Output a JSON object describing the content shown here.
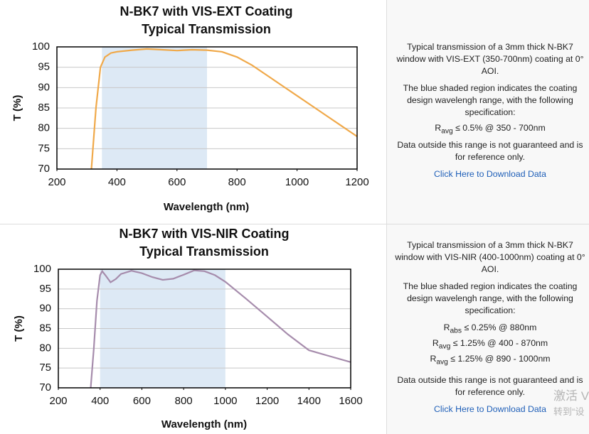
{
  "chart_data": [
    {
      "type": "line",
      "title": [
        "N-BK7 with VIS-EXT Coating",
        "Typical Transmission"
      ],
      "xlabel": "Wavelength (nm)",
      "ylabel": "T (%)",
      "x": [
        315,
        330,
        345,
        360,
        380,
        400,
        450,
        500,
        550,
        600,
        650,
        700,
        750,
        800,
        850,
        900,
        950,
        1000,
        1050,
        1100,
        1150,
        1200
      ],
      "values": [
        70,
        85,
        95,
        97.5,
        98.5,
        98.8,
        99.2,
        99.5,
        99.3,
        99.1,
        99.3,
        99.2,
        98.8,
        97.5,
        95.5,
        93,
        90.5,
        88,
        85.5,
        83,
        80.5,
        78
      ],
      "color": "#f0a94a",
      "shade": [
        350,
        700
      ],
      "shade_color": "#dde9f5",
      "xlim": [
        200,
        1200
      ],
      "ylim": [
        70,
        100
      ],
      "xticks": [
        200,
        400,
        600,
        800,
        1000,
        1200
      ],
      "yticks": [
        70,
        75,
        80,
        85,
        90,
        95,
        100
      ],
      "grid": true
    },
    {
      "type": "line",
      "title": [
        "N-BK7 with VIS-NIR Coating",
        "Typical Transmission"
      ],
      "xlabel": "Wavelength (nm)",
      "ylabel": "T (%)",
      "x": [
        355,
        370,
        385,
        400,
        410,
        425,
        450,
        475,
        500,
        550,
        600,
        650,
        700,
        750,
        800,
        850,
        900,
        950,
        1000,
        1100,
        1200,
        1300,
        1400,
        1500,
        1600
      ],
      "values": [
        70,
        80,
        92,
        98.5,
        99.5,
        98.5,
        96.7,
        97.5,
        98.8,
        99.6,
        99,
        98,
        97.3,
        97.6,
        98.6,
        99.7,
        99.5,
        98.5,
        96.8,
        92.5,
        88,
        83.5,
        79.5,
        78,
        76.5
      ],
      "color": "#a68cac",
      "shade": [
        400,
        1000
      ],
      "shade_color": "#dde9f5",
      "xlim": [
        200,
        1600
      ],
      "ylim": [
        70,
        100
      ],
      "xticks": [
        200,
        400,
        600,
        800,
        1000,
        1200,
        1400,
        1600
      ],
      "yticks": [
        70,
        75,
        80,
        85,
        90,
        95,
        100
      ],
      "grid": true
    }
  ],
  "panels": [
    {
      "intro": "Typical transmission of a 3mm thick N-BK7 window with VIS-EXT (350-700nm) coating at 0° AOI.",
      "shade_note": "The blue shaded region indicates the coating design wavelengh range, with the following specification:",
      "spec": [
        {
          "symbol": "R",
          "sub": "avg",
          "text": "≤ 0.5% @ 350 - 700nm"
        }
      ],
      "disclaimer": "Data outside this range is not guaranteed and is for reference only.",
      "link": "Click Here to Download Data"
    },
    {
      "intro": "Typical transmission of a 3mm thick N-BK7 window with VIS-NIR (400-1000nm) coating at 0° AOI.",
      "shade_note": "The blue shaded region indicates the coating design wavelengh range, with the following specification:",
      "spec": [
        {
          "symbol": "R",
          "sub": "abs",
          "text": "≤ 0.25% @ 880nm"
        },
        {
          "symbol": "R",
          "sub": "avg",
          "text": "≤ 1.25% @ 400 - 870nm"
        },
        {
          "symbol": "R",
          "sub": "avg",
          "text": "≤ 1.25% @ 890 - 1000nm"
        }
      ],
      "disclaimer": "Data outside this range is not guaranteed and is for reference only.",
      "link": "Click Here to Download Data"
    }
  ],
  "watermark": [
    "激活 V",
    "转到“设"
  ]
}
